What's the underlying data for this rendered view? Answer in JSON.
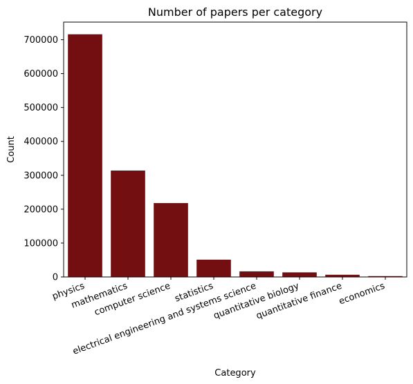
{
  "chart_data": {
    "type": "bar",
    "title": "Number of papers per category",
    "xlabel": "Category",
    "ylabel": "Count",
    "categories": [
      "physics",
      "mathematics",
      "computer science",
      "statistics",
      "electrical engineering and systems science",
      "quantitative biology",
      "quantitative finance",
      "economics"
    ],
    "values": [
      716000,
      314000,
      218000,
      51000,
      16500,
      13500,
      6500,
      2500
    ],
    "ylim": [
      0,
      752000
    ],
    "yticks": [
      0,
      100000,
      200000,
      300000,
      400000,
      500000,
      600000,
      700000
    ],
    "ytick_labels": [
      "0",
      "100000",
      "200000",
      "300000",
      "400000",
      "500000",
      "600000",
      "700000"
    ],
    "bar_color": "#730f10",
    "grid": false,
    "legend": false
  }
}
